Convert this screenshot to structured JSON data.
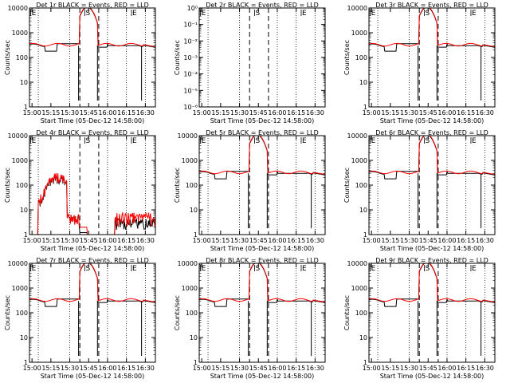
{
  "figure": {
    "ylabel": "Counts/sec",
    "xlabel": "Start Time (05-Dec-12 14:58:00)"
  },
  "chart_data": [
    {
      "type": "line",
      "title": "Det 1r BLACK = Events, RED = LLD",
      "ylog": true,
      "ylim": [
        1,
        10000
      ],
      "yticks": [
        "1",
        "10",
        "100",
        "1000",
        "10000"
      ],
      "xticks": [
        "15:00",
        "15:15",
        "15:30",
        "15:45",
        "16:00",
        "16:15",
        "16:30"
      ],
      "xlim": [
        "14:58",
        "16:38"
      ],
      "markers": [
        {
          "label": "E",
          "time": "14:59"
        },
        {
          "label": "S",
          "time": "15:42"
        },
        {
          "label": "E",
          "time": "16:19"
        }
      ],
      "series": [
        {
          "name": "Events",
          "color": "#000000",
          "profile": "normal"
        },
        {
          "name": "LLD",
          "color": "#ff0000",
          "profile": "normal"
        }
      ]
    },
    {
      "type": "line",
      "title": "Det 2r BLACK = Events, RED = LLD",
      "ylog": true,
      "ylim": [
        1e-06,
        1
      ],
      "yticks": [
        "10⁻⁶",
        "10⁻⁵",
        "10⁻⁴",
        "10⁻³",
        "10⁻²",
        "10⁻¹",
        "10⁰"
      ],
      "xticks": [
        "15:00",
        "15:15",
        "15:30",
        "15:45",
        "16:00",
        "16:15",
        "16:30"
      ],
      "xlim": [
        "14:58",
        "16:38"
      ],
      "markers": [
        {
          "label": "E",
          "time": "14:59"
        },
        {
          "label": "S",
          "time": "15:42"
        },
        {
          "label": "E",
          "time": "16:19"
        }
      ],
      "series": []
    },
    {
      "type": "line",
      "title": "Det 3r BLACK = Events, RED = LLD",
      "ylog": true,
      "ylim": [
        1,
        10000
      ],
      "yticks": [
        "1",
        "10",
        "100",
        "1000",
        "10000"
      ],
      "xticks": [
        "15:00",
        "15:15",
        "15:30",
        "15:45",
        "16:00",
        "16:15",
        "16:30"
      ],
      "xlim": [
        "14:58",
        "16:38"
      ],
      "markers": [
        {
          "label": "E",
          "time": "14:59"
        },
        {
          "label": "S",
          "time": "15:42"
        },
        {
          "label": "E",
          "time": "16:19"
        }
      ],
      "series": [
        {
          "name": "Events",
          "color": "#000000",
          "profile": "normal"
        },
        {
          "name": "LLD",
          "color": "#ff0000",
          "profile": "normal"
        }
      ]
    },
    {
      "type": "line",
      "title": "Det 4r BLACK = Events, RED = LLD",
      "ylog": true,
      "ylim": [
        1,
        10000
      ],
      "yticks": [
        "1",
        "10",
        "100",
        "1000",
        "10000"
      ],
      "xticks": [
        "15:00",
        "15:15",
        "15:30",
        "15:45",
        "16:00",
        "16:15",
        "16:30"
      ],
      "xlim": [
        "14:58",
        "16:38"
      ],
      "markers": [
        {
          "label": "E",
          "time": "14:59"
        },
        {
          "label": "S",
          "time": "15:42"
        },
        {
          "label": "E",
          "time": "16:19"
        }
      ],
      "series": [
        {
          "name": "Events",
          "color": "#000000",
          "profile": "det4"
        },
        {
          "name": "LLD",
          "color": "#ff0000",
          "profile": "det4"
        }
      ]
    },
    {
      "type": "line",
      "title": "Det 5r BLACK = Events, RED = LLD",
      "ylog": true,
      "ylim": [
        1,
        10000
      ],
      "yticks": [
        "1",
        "10",
        "100",
        "1000",
        "10000"
      ],
      "xticks": [
        "15:00",
        "15:15",
        "15:30",
        "15:45",
        "16:00",
        "16:15",
        "16:30"
      ],
      "xlim": [
        "14:58",
        "16:38"
      ],
      "markers": [
        {
          "label": "E",
          "time": "14:59"
        },
        {
          "label": "S",
          "time": "15:42"
        },
        {
          "label": "E",
          "time": "16:19"
        }
      ],
      "series": [
        {
          "name": "Events",
          "color": "#000000",
          "profile": "normal"
        },
        {
          "name": "LLD",
          "color": "#ff0000",
          "profile": "normal"
        }
      ]
    },
    {
      "type": "line",
      "title": "Det 6r BLACK = Events, RED = LLD",
      "ylog": true,
      "ylim": [
        1,
        10000
      ],
      "yticks": [
        "1",
        "10",
        "100",
        "1000",
        "10000"
      ],
      "xticks": [
        "15:00",
        "15:15",
        "15:30",
        "15:45",
        "16:00",
        "16:15",
        "16:30"
      ],
      "xlim": [
        "14:58",
        "16:38"
      ],
      "markers": [
        {
          "label": "E",
          "time": "14:59"
        },
        {
          "label": "S",
          "time": "15:42"
        },
        {
          "label": "E",
          "time": "16:19"
        }
      ],
      "series": [
        {
          "name": "Events",
          "color": "#000000",
          "profile": "normal"
        },
        {
          "name": "LLD",
          "color": "#ff0000",
          "profile": "normal"
        }
      ]
    },
    {
      "type": "line",
      "title": "Det 7r BLACK = Events, RED = LLD",
      "ylog": true,
      "ylim": [
        1,
        10000
      ],
      "yticks": [
        "1",
        "10",
        "100",
        "1000",
        "10000"
      ],
      "xticks": [
        "15:00",
        "15:15",
        "15:30",
        "15:45",
        "16:00",
        "16:15",
        "16:30"
      ],
      "xlim": [
        "14:58",
        "16:38"
      ],
      "markers": [
        {
          "label": "E",
          "time": "14:59"
        },
        {
          "label": "S",
          "time": "15:42"
        },
        {
          "label": "E",
          "time": "16:19"
        }
      ],
      "series": [
        {
          "name": "Events",
          "color": "#000000",
          "profile": "normal"
        },
        {
          "name": "LLD",
          "color": "#ff0000",
          "profile": "normal"
        }
      ]
    },
    {
      "type": "line",
      "title": "Det 8r BLACK = Events, RED = LLD",
      "ylog": true,
      "ylim": [
        1,
        10000
      ],
      "yticks": [
        "1",
        "10",
        "100",
        "1000",
        "10000"
      ],
      "xticks": [
        "15:00",
        "15:15",
        "15:30",
        "15:45",
        "16:00",
        "16:15",
        "16:30"
      ],
      "xlim": [
        "14:58",
        "16:38"
      ],
      "markers": [
        {
          "label": "E",
          "time": "14:59"
        },
        {
          "label": "S",
          "time": "15:42"
        },
        {
          "label": "E",
          "time": "16:19"
        }
      ],
      "series": [
        {
          "name": "Events",
          "color": "#000000",
          "profile": "normal"
        },
        {
          "name": "LLD",
          "color": "#ff0000",
          "profile": "normal"
        }
      ]
    },
    {
      "type": "line",
      "title": "Det 9r BLACK = Events, RED = LLD",
      "ylog": true,
      "ylim": [
        1,
        10000
      ],
      "yticks": [
        "1",
        "10",
        "100",
        "1000",
        "10000"
      ],
      "xticks": [
        "15:00",
        "15:15",
        "15:30",
        "15:45",
        "16:00",
        "16:15",
        "16:30"
      ],
      "xlim": [
        "14:58",
        "16:38"
      ],
      "markers": [
        {
          "label": "E",
          "time": "14:59"
        },
        {
          "label": "S",
          "time": "15:42"
        },
        {
          "label": "E",
          "time": "16:19"
        }
      ],
      "series": [
        {
          "name": "Events",
          "color": "#000000",
          "profile": "normal"
        },
        {
          "name": "LLD",
          "color": "#ff0000",
          "profile": "normal"
        }
      ]
    }
  ]
}
